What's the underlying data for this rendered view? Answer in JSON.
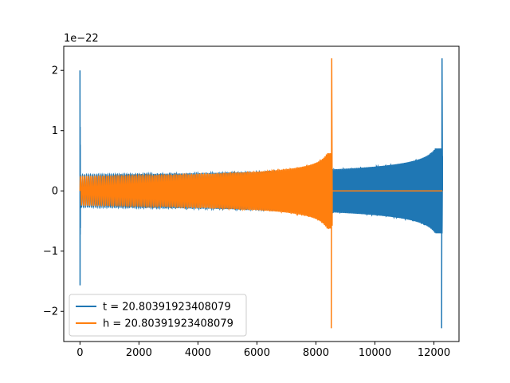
{
  "chart_data": {
    "type": "line",
    "title": "",
    "xlabel": "",
    "ylabel": "",
    "y_offset_text": "1e−22",
    "xlim": [
      -550,
      12850
    ],
    "ylim": [
      -2.5,
      2.4
    ],
    "x_ticks": [
      0,
      2000,
      4000,
      6000,
      8000,
      10000,
      12000
    ],
    "x_tick_labels": [
      "0",
      "2000",
      "4000",
      "6000",
      "8000",
      "10000",
      "12000"
    ],
    "y_ticks": [
      -2,
      -1,
      0,
      1,
      2
    ],
    "y_tick_labels": [
      "−2",
      "−1",
      "0",
      "1",
      "2"
    ],
    "grid": false,
    "legend_position": "lower-left",
    "series": [
      {
        "name": "t = 20.80391923408079",
        "color": "#1f77b4",
        "x_range": [
          0,
          12290
        ],
        "description_values": {
          "initial_spike_max": 2.0,
          "initial_spike_min": -1.5,
          "amplitude_at_8600": 0.68,
          "amplitude_near_11000": 0.85,
          "final_peak_max": 2.2,
          "final_peak_min": -2.3,
          "chirp_end_x": 12290
        }
      },
      {
        "name": "h = 20.80391923408079",
        "color": "#ff7f0e",
        "x_range": [
          0,
          12290
        ],
        "description_values": {
          "amplitude_at_start": 0.57,
          "amplitude_near_6000": 0.65,
          "final_peak_max": 2.2,
          "final_peak_min": -2.3,
          "chirp_end_x": 8550,
          "flat_value_after_end": 0.0
        }
      }
    ]
  }
}
